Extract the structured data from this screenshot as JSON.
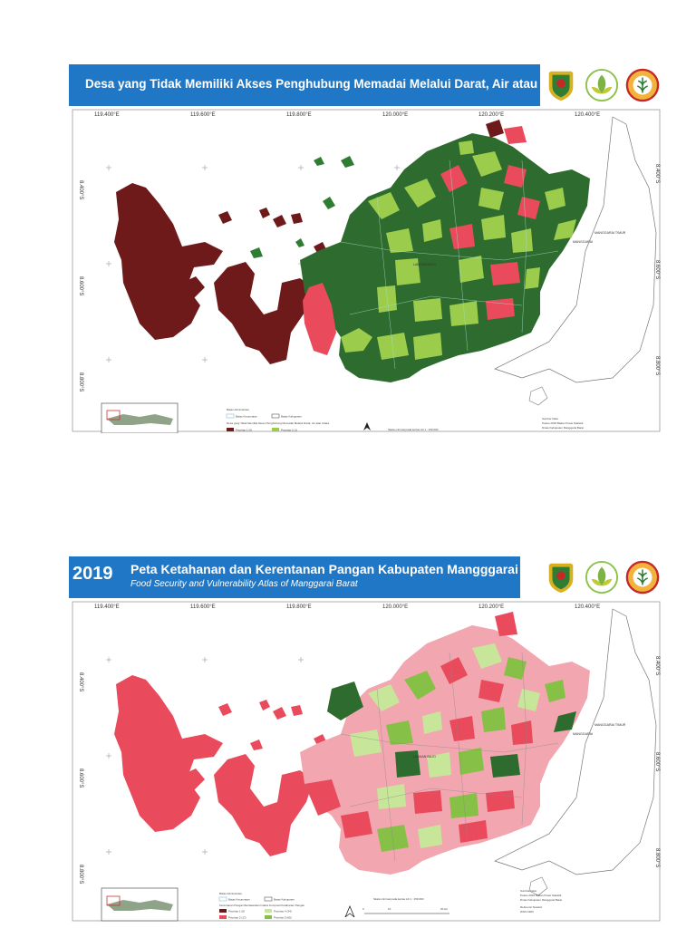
{
  "map1": {
    "title": "Desa yang Tidak Memiliki Akses Penghubung Memadai Melalui Darat, Air atau Udara",
    "lon_labels": [
      "119.400°E",
      "119.600°E",
      "119.800°E",
      "120.000°E",
      "120.200°E",
      "120.400°E"
    ],
    "lat_labels": [
      "8.400°S",
      "8.600°S",
      "8.800°S"
    ],
    "place_labels": [
      "MANGGARAI TIMUR",
      "MANGGARAI",
      "LABUAN BAJO"
    ],
    "legend": {
      "boundary_heading": "Batas Administrasi",
      "boundary_items": [
        "Batas Kecamatan",
        "Batas Kabupaten"
      ],
      "category_heading": "Desa yang Tidak Memiliki Akses Penghubung Memadai Melalui Darat, Air atau Udara",
      "categories": [
        {
          "label": "Prioritas 1 (0)",
          "color": "#6e1a1a"
        },
        {
          "label": "Prioritas 2 (1)",
          "color": "#9ccc4c"
        }
      ]
    },
    "scale_note": "Skala minimal pada kertas A4 1 : 150.000",
    "source_heading": "Sumber Data:",
    "source_lines": [
      "Podes 2018 Badan Pusat Statistik",
      "Dinas Kabupaten Manggarai Barat"
    ]
  },
  "map2": {
    "year": "2019",
    "title": "Peta Ketahanan dan Kerentanan Pangan Kabupaten Mangggarai Barat",
    "subtitle": "Food Security and Vulnerability Atlas of Manggarai Barat",
    "lon_labels": [
      "119.400°E",
      "119.600°E",
      "119.800°E",
      "120.000°E",
      "120.200°E",
      "120.400°E"
    ],
    "lat_labels": [
      "8.400°S",
      "8.600°S",
      "8.800°S"
    ],
    "place_labels": [
      "MANGGARAI TIMUR",
      "MANGGARAI",
      "LABUAN BAJO"
    ],
    "legend": {
      "boundary_heading": "Batas Administrasi",
      "boundary_items": [
        "Batas Kecamatan",
        "Batas Kabupaten"
      ],
      "category_heading": "Kerentanan Pangan Berdasarkan Indeks Komposit Ketahanan Pangan",
      "categories": [
        {
          "label": "Prioritas 1 (0)",
          "color": "#6e1a1a"
        },
        {
          "label": "Prioritas 4 (34)",
          "color": "#c8e69a"
        },
        {
          "label": "Prioritas 2 (17)",
          "color": "#e94b5c"
        },
        {
          "label": "Prioritas 5 (65)",
          "color": "#86c046"
        }
      ]
    },
    "scale_note": "Skala minimal pada kertas A4 1 : 150.000",
    "scale_marks": [
      "0",
      "10",
      "20 km"
    ],
    "source_heading": "Sumber Data:",
    "source_lines": [
      "Podes 2018 Badan Pusat Statistik",
      "Dinas Kabupaten Manggarai Barat"
    ],
    "reference_heading": "Referensi Spasial:",
    "reference_value": "WGS 1984"
  }
}
